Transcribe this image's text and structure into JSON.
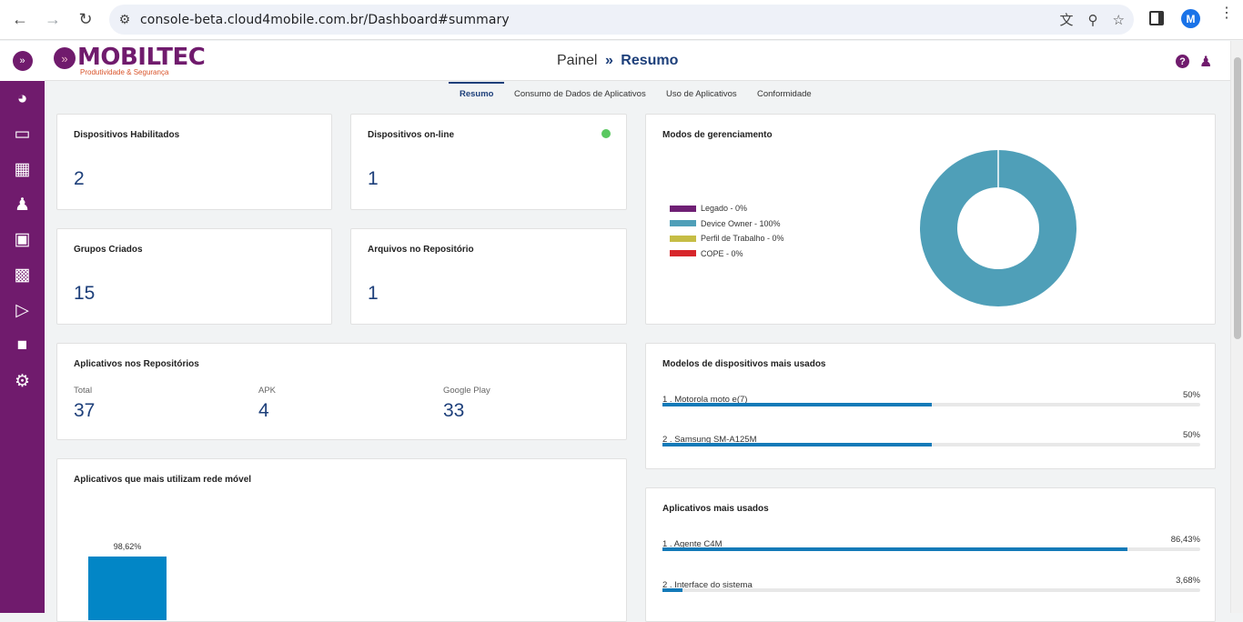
{
  "browser": {
    "url": "console-beta.cloud4mobile.com.br/Dashboard#summary",
    "profile_initial": "M"
  },
  "brand": {
    "name": "MOBILTEC",
    "tagline": "Produtividade & Segurança"
  },
  "breadcrumb": {
    "parent": "Painel",
    "separator": "»",
    "current": "Resumo"
  },
  "tabs": [
    {
      "label": "Resumo",
      "active": true
    },
    {
      "label": "Consumo de Dados de Aplicativos",
      "active": false
    },
    {
      "label": "Uso de Aplicativos",
      "active": false
    },
    {
      "label": "Conformidade",
      "active": false
    }
  ],
  "sidebar": {
    "items": [
      {
        "icon": "dashboard-icon"
      },
      {
        "icon": "devices-icon"
      },
      {
        "icon": "grid-icon"
      },
      {
        "icon": "groups-icon"
      },
      {
        "icon": "inbox-icon"
      },
      {
        "icon": "apps-icon"
      },
      {
        "icon": "play-store-icon"
      },
      {
        "icon": "robot-icon"
      },
      {
        "icon": "settings-icon"
      }
    ]
  },
  "cards": {
    "devices_enabled": {
      "title": "Dispositivos Habilitados",
      "value": "2"
    },
    "devices_online": {
      "title": "Dispositivos on-line",
      "value": "1",
      "status_color": "#5ac860"
    },
    "groups_created": {
      "title": "Grupos Criados",
      "value": "15"
    },
    "repo_files": {
      "title": "Arquivos no Repositório",
      "value": "1"
    },
    "repo_apps": {
      "title": "Aplicativos nos Repositórios",
      "stats": [
        {
          "label": "Total",
          "value": "37"
        },
        {
          "label": "APK",
          "value": "4"
        },
        {
          "label": "Google Play",
          "value": "33"
        }
      ]
    },
    "mobile_network_apps": {
      "title": "Aplicativos que mais utilizam rede móvel"
    },
    "management_modes": {
      "title": "Modos de gerenciamento"
    },
    "top_models": {
      "title": "Modelos de dispositivos mais usados",
      "rows": [
        {
          "label": "1 . Motorola moto e(7)",
          "pct": "50%",
          "value": 0.5
        },
        {
          "label": "2 . Samsung SM-A125M",
          "pct": "50%",
          "value": 0.5
        }
      ]
    },
    "top_apps": {
      "title": "Aplicativos mais usados",
      "rows": [
        {
          "label": "1 . Agente C4M",
          "pct": "86,43%",
          "value": 0.8643
        },
        {
          "label": "2 . Interface do sistema",
          "pct": "3,68%",
          "value": 0.0368
        }
      ]
    }
  },
  "chart_data": [
    {
      "type": "pie",
      "title": "Modos de gerenciamento",
      "categories": [
        "Legado - 0%",
        "Device Owner - 100%",
        "Perfil de Trabalho - 0%",
        "COPE - 0%"
      ],
      "values": [
        0,
        100,
        0,
        0
      ],
      "colors": [
        "#6f1f74",
        "#4f9fb8",
        "#c6bd45",
        "#d7262b"
      ],
      "legend": "left"
    },
    {
      "type": "bar",
      "title": "Aplicativos que mais utilizam rede móvel",
      "categories": [
        ""
      ],
      "values": [
        98.62
      ],
      "data_labels": [
        "98,62%"
      ],
      "colors": [
        "#0286c6"
      ]
    }
  ]
}
